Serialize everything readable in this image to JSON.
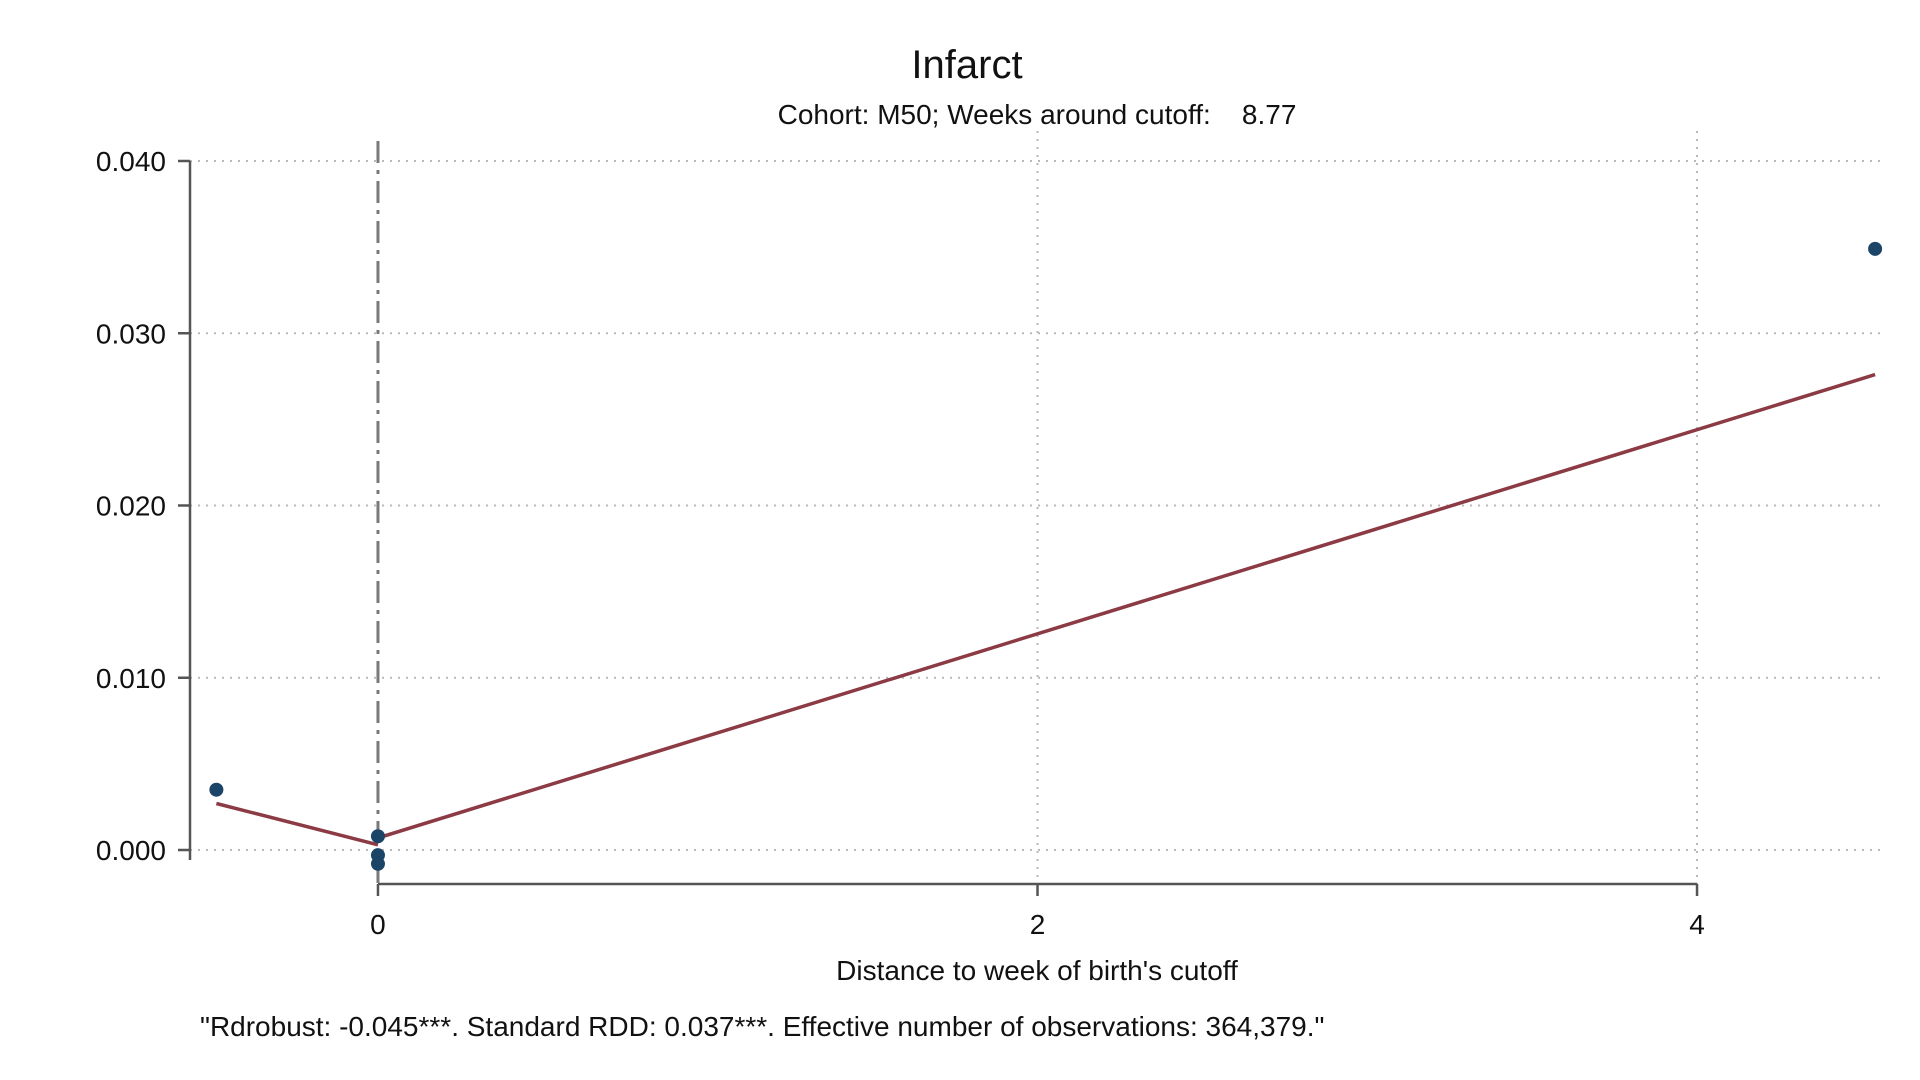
{
  "chart_data": {
    "type": "scatter",
    "title": "Infarct",
    "subtitle": "Cohort: M50; Weeks around cutoff:    8.77",
    "xlabel": "Distance to week of birth's cutoff",
    "ylabel": "",
    "note": "\"Rdrobust: -0.045***. Standard RDD: 0.037***. Effective number of observations: 364,379.\"",
    "xlim": [
      -0.57,
      4.57
    ],
    "ylim": [
      0.0,
      0.04
    ],
    "x_ticks": [
      0,
      2,
      4
    ],
    "x_tick_labels": [
      "0",
      "2",
      "4"
    ],
    "y_ticks": [
      0.0,
      0.01,
      0.02,
      0.03,
      0.04
    ],
    "y_tick_labels": [
      "0.000",
      "0.010",
      "0.020",
      "0.030",
      "0.040"
    ],
    "grid": true,
    "cutoff_x": 0,
    "points": [
      {
        "x": -0.49,
        "y": 0.0035
      },
      {
        "x": 0.0,
        "y": 0.0008
      },
      {
        "x": 0.0,
        "y": -0.0003
      },
      {
        "x": 0.0,
        "y": -0.0008
      },
      {
        "x": 4.54,
        "y": 0.0349
      }
    ],
    "fit_segments": [
      [
        {
          "x": -0.49,
          "y": 0.0027
        },
        {
          "x": 0.0,
          "y": 0.0003
        }
      ],
      [
        {
          "x": 0.0,
          "y": 0.0007
        },
        {
          "x": 4.54,
          "y": 0.0276
        }
      ]
    ],
    "colors": {
      "points": "#1b4466",
      "fit": "#8c3a44",
      "cutoff": "#7a7a7a",
      "grid": "#b9b9b9",
      "axis": "#555555"
    }
  }
}
